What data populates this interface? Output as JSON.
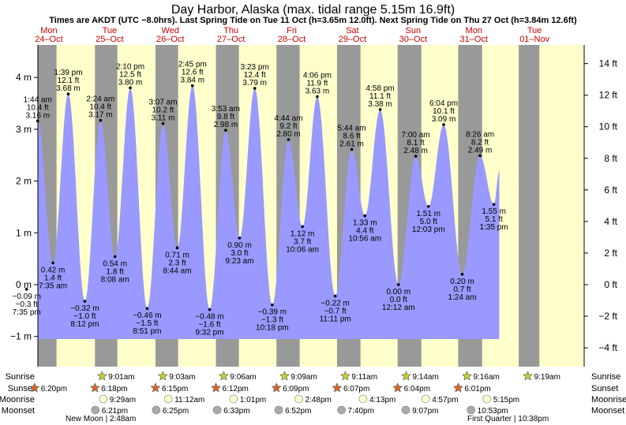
{
  "chart_data": {
    "type": "area",
    "title": "Day Harbor, Alaska (max. tidal range 5.15m 16.9ft)",
    "subtitle": "Times are AKDT (UTC −8.0hrs). Last Spring Tide on Tue 11 Oct (h=3.65m 12.0ft). Next Spring Tide on Thu 27 Oct (h=3.84m 12.6ft)",
    "ylabel_left": "m",
    "ylabel_right": "ft",
    "ylim_m": [
      -1.5,
      4.55
    ],
    "xlim_days": [
      0.0,
      8.58
    ],
    "left_ticks": [
      {
        "v": -1,
        "label": "−1 m"
      },
      {
        "v": 0,
        "label": "0 m"
      },
      {
        "v": 1,
        "label": "1 m"
      },
      {
        "v": 2,
        "label": "2 m"
      },
      {
        "v": 3,
        "label": "3 m"
      },
      {
        "v": 4,
        "label": "4 m"
      }
    ],
    "right_ticks": [
      {
        "v": -4,
        "label": "−4 ft"
      },
      {
        "v": -2,
        "label": "−2 ft"
      },
      {
        "v": 0,
        "label": "0 ft"
      },
      {
        "v": 2,
        "label": "2 ft"
      },
      {
        "v": 4,
        "label": "4 ft"
      },
      {
        "v": 6,
        "label": "6 ft"
      },
      {
        "v": 8,
        "label": "8 ft"
      },
      {
        "v": 10,
        "label": "10 ft"
      },
      {
        "v": 12,
        "label": "12 ft"
      },
      {
        "v": 14,
        "label": "14 ft"
      }
    ],
    "days": [
      {
        "name": "Mon",
        "date": "24–Oct"
      },
      {
        "name": "Tue",
        "date": "25–Oct"
      },
      {
        "name": "Wed",
        "date": "26–Oct"
      },
      {
        "name": "Thu",
        "date": "27–Oct"
      },
      {
        "name": "Fri",
        "date": "28–Oct"
      },
      {
        "name": "Sat",
        "date": "29–Oct"
      },
      {
        "name": "Sun",
        "date": "30–Oct"
      },
      {
        "name": "Mon",
        "date": "31–Oct"
      },
      {
        "name": "Tue",
        "date": "01–Nov"
      }
    ],
    "night_bands": [
      [
        0.2633,
        0.6257
      ],
      [
        1.2583,
        1.627
      ],
      [
        2.2556,
        2.6285
      ],
      [
        3.2513,
        3.6299
      ],
      [
        4.2479,
        4.6313
      ],
      [
        5.2465,
        5.6327
      ],
      [
        6.2442,
        6.6354
      ],
      [
        7.2417,
        7.6368
      ],
      [
        8.2389,
        8.58
      ]
    ],
    "tides": [
      {
        "t": -0.02,
        "h": 2.0,
        "label": ""
      },
      {
        "t": 0.066,
        "h": 1.1,
        "label": ""
      },
      {
        "t": 0.1326,
        "h": -0.09,
        "m": "−0.09 m",
        "ft": "−0.3 ft",
        "time": "7:35 pm",
        "type": "low"
      },
      {
        "t": 0.3153,
        "h": 3.16,
        "m": "3.16 m",
        "ft": "10.4 ft",
        "time": "1:44 am",
        "type": "high"
      },
      {
        "t": 0.566,
        "h": 0.42,
        "m": "0.42 m",
        "ft": "1.4 ft",
        "time": "7:35 am",
        "type": "low"
      },
      {
        "t": 0.8188,
        "h": 3.68,
        "m": "3.68 m",
        "ft": "12.1 ft",
        "time": "1:39 pm",
        "type": "high"
      },
      {
        "t": 1.0917,
        "h": -0.32,
        "m": "−0.32 m",
        "ft": "−1.0 ft",
        "time": "8:12 pm",
        "type": "low"
      },
      {
        "t": 1.35,
        "h": 3.17,
        "m": "3.17 m",
        "ft": "10.4 ft",
        "time": "2:24 am",
        "type": "high"
      },
      {
        "t": 1.5889,
        "h": 0.54,
        "m": "0.54 m",
        "ft": "1.8 ft",
        "time": "8:08 am",
        "type": "low"
      },
      {
        "t": 1.8403,
        "h": 3.8,
        "m": "3.80 m",
        "ft": "12.5 ft",
        "time": "2:10 pm",
        "type": "high"
      },
      {
        "t": 2.1188,
        "h": -0.46,
        "m": "−0.46 m",
        "ft": "−1.5 ft",
        "time": "8:51 pm",
        "type": "low"
      },
      {
        "t": 2.3799,
        "h": 3.11,
        "m": "3.11 m",
        "ft": "10.2 ft",
        "time": "3:07 am",
        "type": "high"
      },
      {
        "t": 2.6139,
        "h": 0.71,
        "m": "0.71 m",
        "ft": "2.3 ft",
        "time": "8:44 am",
        "type": "low"
      },
      {
        "t": 2.8646,
        "h": 3.84,
        "m": "3.84 m",
        "ft": "12.6 ft",
        "time": "2:45 pm",
        "type": "high"
      },
      {
        "t": 3.1472,
        "h": -0.48,
        "m": "−0.48 m",
        "ft": "−1.6 ft",
        "time": "9:32 pm",
        "type": "low"
      },
      {
        "t": 3.4118,
        "h": 2.98,
        "m": "2.98 m",
        "ft": "9.8 ft",
        "time": "3:53 am",
        "type": "high"
      },
      {
        "t": 3.641,
        "h": 0.9,
        "m": "0.90 m",
        "ft": "3.0 ft",
        "time": "9:23 am",
        "type": "low"
      },
      {
        "t": 3.891,
        "h": 3.79,
        "m": "3.79 m",
        "ft": "12.4 ft",
        "time": "3:23 pm",
        "type": "high"
      },
      {
        "t": 4.1792,
        "h": -0.39,
        "m": "−0.39 m",
        "ft": "−1.3 ft",
        "time": "10:18 pm",
        "type": "low"
      },
      {
        "t": 4.4472,
        "h": 2.8,
        "m": "2.80 m",
        "ft": "9.2 ft",
        "time": "4:44 am",
        "type": "high"
      },
      {
        "t": 4.6764,
        "h": 1.12,
        "m": "1.12 m",
        "ft": "3.7 ft",
        "time": "10:06 am",
        "type": "low"
      },
      {
        "t": 4.9208,
        "h": 3.63,
        "m": "3.63 m",
        "ft": "11.9 ft",
        "time": "4:06 pm",
        "type": "high"
      },
      {
        "t": 5.216,
        "h": -0.22,
        "m": "−0.22 m",
        "ft": "−0.7 ft",
        "time": "11:11 pm",
        "type": "low"
      },
      {
        "t": 5.4889,
        "h": 2.61,
        "m": "2.61 m",
        "ft": "8.6 ft",
        "time": "5:44 am",
        "type": "high"
      },
      {
        "t": 5.7056,
        "h": 1.33,
        "m": "1.33 m",
        "ft": "4.4 ft",
        "time": "10:56 am",
        "type": "low"
      },
      {
        "t": 5.9569,
        "h": 3.38,
        "m": "3.38 m",
        "ft": "11.1 ft",
        "time": "4:58 pm",
        "type": "high"
      },
      {
        "t": 6.2583,
        "h": 0.0,
        "m": "0.00 m",
        "ft": "0.0 ft",
        "time": "12:12 am",
        "type": "low"
      },
      {
        "t": 6.5417,
        "h": 2.48,
        "m": "2.48 m",
        "ft": "8.1 ft",
        "time": "7:00 am",
        "type": "high"
      },
      {
        "t": 6.7521,
        "h": 1.51,
        "m": "1.51 m",
        "ft": "5.0 ft",
        "time": "12:03 pm",
        "type": "low"
      },
      {
        "t": 7.0028,
        "h": 3.09,
        "m": "3.09 m",
        "ft": "10.1 ft",
        "time": "6:04 pm",
        "type": "high"
      },
      {
        "t": 7.3083,
        "h": 0.2,
        "m": "0.20 m",
        "ft": "0.7 ft",
        "time": "1:24 am",
        "type": "low"
      },
      {
        "t": 7.6014,
        "h": 2.49,
        "m": "2.49 m",
        "ft": "8.2 ft",
        "time": "8:26 am",
        "type": "high"
      },
      {
        "t": 7.8299,
        "h": 1.55,
        "m": "1.55 m",
        "ft": "5.1 ft",
        "time": "1:35 pm",
        "type": "low"
      },
      {
        "t": 7.92,
        "h": 2.2,
        "label": ""
      }
    ]
  },
  "astro": {
    "row_labels": [
      "Sunrise",
      "Sunset",
      "Moonrise",
      "Moonset"
    ],
    "sunrise": [
      {
        "t": 1.3757,
        "text": "9:01am"
      },
      {
        "t": 2.3771,
        "text": "9:03am"
      },
      {
        "t": 3.3792,
        "text": "9:06am"
      },
      {
        "t": 4.3813,
        "text": "9:09am"
      },
      {
        "t": 5.3826,
        "text": "9:11am"
      },
      {
        "t": 6.3847,
        "text": "9:14am"
      },
      {
        "t": 7.3861,
        "text": "9:16am"
      },
      {
        "t": 8.3882,
        "text": "9:19am"
      }
    ],
    "sunset": [
      {
        "t": 0.2633,
        "text": "6:20pm"
      },
      {
        "t": 1.2583,
        "text": "6:18pm"
      },
      {
        "t": 2.2556,
        "text": "6:15pm"
      },
      {
        "t": 3.2513,
        "text": "6:12pm"
      },
      {
        "t": 4.2479,
        "text": "6:09pm"
      },
      {
        "t": 5.2465,
        "text": "6:07pm"
      },
      {
        "t": 6.2442,
        "text": "6:04pm"
      },
      {
        "t": 7.2417,
        "text": "6:01pm"
      }
    ],
    "moonrise": [
      {
        "t": 1.3951,
        "text": "9:29am"
      },
      {
        "t": 2.4667,
        "text": "11:12am"
      },
      {
        "t": 3.5424,
        "text": "1:01pm"
      },
      {
        "t": 4.6167,
        "text": "2:48pm"
      },
      {
        "t": 5.6757,
        "text": "4:13pm"
      },
      {
        "t": 6.7063,
        "text": "4:57pm"
      },
      {
        "t": 7.7146,
        "text": "5:15pm"
      }
    ],
    "moonset": [
      {
        "t": 1.2646,
        "text": "6:21pm"
      },
      {
        "t": 2.2674,
        "text": "6:25pm"
      },
      {
        "t": 3.2729,
        "text": "6:33pm"
      },
      {
        "t": 4.2861,
        "text": "6:52pm"
      },
      {
        "t": 5.3194,
        "text": "7:40pm"
      },
      {
        "t": 6.3799,
        "text": "9:07pm"
      },
      {
        "t": 7.4535,
        "text": "10:53pm"
      }
    ],
    "moon_phase_left": "New Moon | 2:48am",
    "moon_phase_right": "First Quarter | 10:38pm"
  },
  "colors": {
    "day_bg": "#ffffcc",
    "night_bg": "#999999",
    "water": "#9999ff",
    "day_label": "#cc0000",
    "sunrise_star": "#cccc33",
    "sunset_star": "#dd6622",
    "moonrise": "#ffffcc",
    "moonset": "#aaaaaa"
  }
}
